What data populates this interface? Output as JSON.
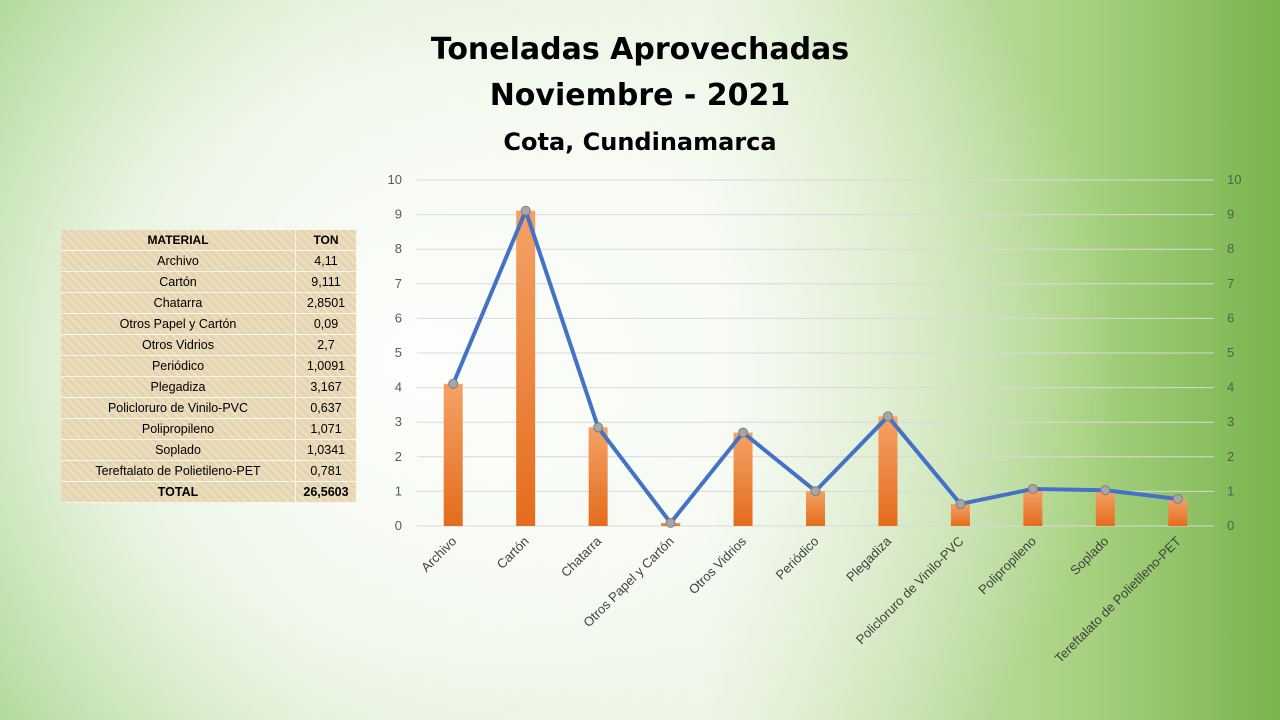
{
  "title": {
    "line1": "Toneladas Aprovechadas",
    "line2": "Noviembre - 2021",
    "subtitle": "Cota, Cundinamarca"
  },
  "table": {
    "headers": [
      "MATERIAL",
      "TON"
    ],
    "rows": [
      [
        "Archivo",
        "4,11"
      ],
      [
        "Cartón",
        "9,111"
      ],
      [
        "Chatarra",
        "2,8501"
      ],
      [
        "Otros Papel y Cartón",
        "0,09"
      ],
      [
        "Otros Vidrios",
        "2,7"
      ],
      [
        "Periódico",
        "1,0091"
      ],
      [
        "Plegadiza",
        "3,167"
      ],
      [
        "Policloruro de Vinilo-PVC",
        "0,637"
      ],
      [
        "Polipropileno",
        "1,071"
      ],
      [
        "Soplado",
        "1,0341"
      ],
      [
        "Tereftalato de Polietileno-PET",
        "0,781"
      ]
    ],
    "total": [
      "TOTAL",
      "26,5603"
    ]
  },
  "chart_data": {
    "type": "bar",
    "categories": [
      "Archivo",
      "Cartón",
      "Chatarra",
      "Otros Papel y Cartón",
      "Otros Vidrios",
      "Periódico",
      "Plegadiza",
      "Policloruro de Vinilo-PVC",
      "Polipropileno",
      "Soplado",
      "Tereftalato de Polietileno-PET"
    ],
    "series": [
      {
        "type": "bar",
        "values": [
          4.11,
          9.111,
          2.8501,
          0.09,
          2.7,
          1.0091,
          3.167,
          0.637,
          1.071,
          1.0341,
          0.781
        ]
      },
      {
        "type": "line",
        "values": [
          4.11,
          9.111,
          2.8501,
          0.09,
          2.7,
          1.0091,
          3.167,
          0.637,
          1.071,
          1.0341,
          0.781
        ]
      }
    ],
    "ylim": [
      0,
      10
    ],
    "yticks": [
      "0",
      "1",
      "2",
      "3",
      "4",
      "5",
      "6",
      "7",
      "8",
      "9",
      "10"
    ],
    "secondary_axis": true,
    "grid": true,
    "legend": "none",
    "colors": {
      "bar_top": "#f4a267",
      "bar_bottom": "#e46c1c",
      "line": "#4472c4",
      "marker": "#a6a6a6",
      "grid": "#d9d9d9"
    }
  }
}
